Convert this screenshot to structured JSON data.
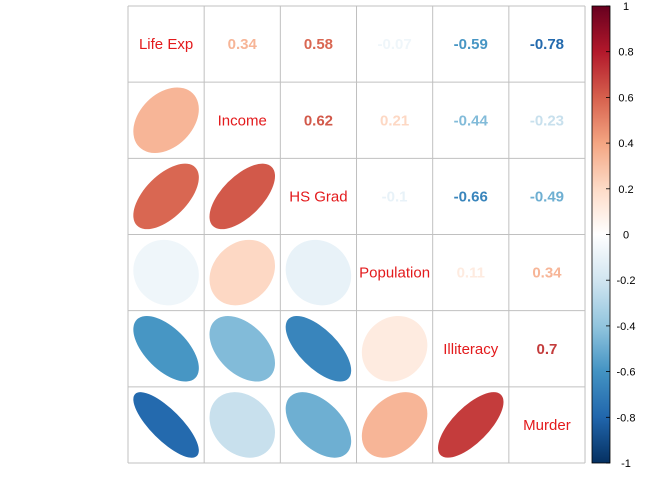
{
  "chart_data": {
    "type": "heatmap",
    "variables": [
      "Life Exp",
      "Income",
      "HS Grad",
      "Population",
      "Illiteracy",
      "Murder"
    ],
    "label_color": "#e31a1c",
    "correlations": [
      [
        1,
        0.34,
        0.58,
        -0.07,
        -0.59,
        -0.78
      ],
      [
        0.34,
        1,
        0.62,
        0.21,
        -0.44,
        -0.23
      ],
      [
        0.58,
        0.62,
        1,
        -0.1,
        -0.66,
        -0.49
      ],
      [
        -0.07,
        0.21,
        -0.1,
        1,
        0.11,
        0.34
      ],
      [
        -0.59,
        -0.44,
        -0.66,
        0.11,
        1,
        0.7
      ],
      [
        -0.78,
        -0.23,
        -0.49,
        0.34,
        0.7,
        1
      ]
    ],
    "upper_text": [
      [
        "",
        "0.34",
        "0.58",
        "-0.07",
        "-0.59",
        "-0.78"
      ],
      [
        "",
        "",
        "0.62",
        "0.21",
        "-0.44",
        "-0.23"
      ],
      [
        "",
        "",
        "",
        "-0.1",
        "-0.66",
        "-0.49"
      ],
      [
        "",
        "",
        "",
        "",
        "0.11",
        "0.34"
      ],
      [
        "",
        "",
        "",
        "",
        "",
        "0.7"
      ],
      [
        "",
        "",
        "",
        "",
        "",
        ""
      ]
    ],
    "lower_method": "ellipse",
    "upper_method": "number",
    "colorbar": {
      "range": [
        -1,
        1
      ],
      "ticks": [
        "1",
        "0.8",
        "0.6",
        "0.4",
        "0.2",
        "0",
        "-0.2",
        "-0.4",
        "-0.6",
        "-0.8",
        "-1"
      ],
      "colors": [
        "#67001F",
        "#B2182B",
        "#D6604D",
        "#F4A582",
        "#FDDBC7",
        "#FFFFFF",
        "#D1E5F0",
        "#92C5DE",
        "#4393C3",
        "#2166AC",
        "#053061"
      ]
    },
    "grid": true,
    "grid_color": "#c0c0c0"
  }
}
